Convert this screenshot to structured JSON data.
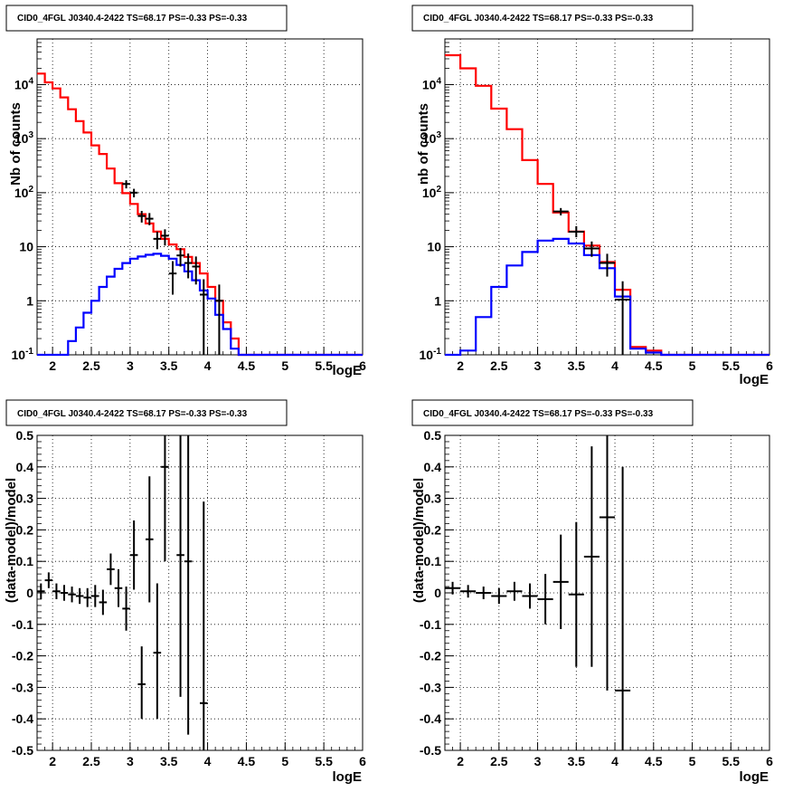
{
  "chart_data": [
    {
      "type": "step",
      "title": "CID0_4FGL J0340.4-2422 TS=68.17 PS=-0.33 PS=-0.33",
      "xlabel": "logE",
      "ylabel": "Nb of counts",
      "xlim": [
        1.8,
        6.0
      ],
      "ylim": [
        0.1,
        70000
      ],
      "yscale": "log",
      "grid": true,
      "x_ticks": [
        "2",
        "2.5",
        "3",
        "3.5",
        "4",
        "4.5",
        "5",
        "5.5",
        "6"
      ],
      "y_ticks": [
        "10^-1",
        "1",
        "10",
        "10^2",
        "10^3",
        "10^4"
      ],
      "series": [
        {
          "color": "#ff0000",
          "bins": [
            1.8,
            1.9,
            2.0,
            2.1,
            2.2,
            2.3,
            2.4,
            2.5,
            2.6,
            2.7,
            2.8,
            2.9,
            3.0,
            3.1,
            3.2,
            3.3,
            3.4,
            3.5,
            3.6,
            3.7,
            3.8,
            3.9,
            4.0,
            4.1,
            4.2,
            4.3,
            4.4,
            4.5,
            4.6,
            4.7,
            4.8,
            4.9,
            5.0,
            5.1,
            5.2,
            5.3,
            5.4,
            5.5,
            5.6,
            5.7,
            5.8,
            5.9,
            6.0
          ],
          "values": [
            16000,
            11000,
            8500,
            5800,
            3500,
            2100,
            1300,
            750,
            520,
            280,
            150,
            98,
            62,
            40,
            27,
            19,
            14,
            11,
            9,
            6.5,
            5,
            3.2,
            1.8,
            1.0,
            0.4,
            0.2,
            0.1,
            0.1,
            0.1,
            0.1,
            0.1,
            0.1,
            0.1,
            0.1,
            0.1,
            0.1,
            0.1,
            0.1,
            0.1,
            0.1,
            0.1,
            0.1
          ]
        },
        {
          "color": "#0000ff",
          "bins": [
            1.8,
            1.9,
            2.0,
            2.1,
            2.2,
            2.3,
            2.4,
            2.5,
            2.6,
            2.7,
            2.8,
            2.9,
            3.0,
            3.1,
            3.2,
            3.3,
            3.4,
            3.5,
            3.6,
            3.7,
            3.8,
            3.9,
            4.0,
            4.1,
            4.2,
            4.3,
            4.4,
            4.5,
            4.6,
            4.7,
            4.8,
            4.9,
            5.0,
            5.1,
            5.2,
            5.3,
            5.4,
            5.5,
            5.6,
            5.7,
            5.8,
            5.9,
            6.0
          ],
          "values": [
            0.02,
            0.04,
            0.06,
            0.1,
            0.18,
            0.32,
            0.6,
            1.0,
            1.8,
            2.8,
            3.9,
            5.0,
            6.0,
            6.6,
            7.1,
            7.4,
            6.8,
            6.0,
            4.6,
            3.5,
            2.4,
            1.55,
            1.1,
            0.55,
            0.3,
            0.13,
            0.1,
            0.1,
            0.1,
            0.1,
            0.1,
            0.1,
            0.1,
            0.1,
            0.1,
            0.1,
            0.1,
            0.1,
            0.1,
            0.1,
            0.1,
            0.1
          ]
        }
      ],
      "points": [
        {
          "x": 2.95,
          "y": 145,
          "xerr": 0.05,
          "lo": 120,
          "hi": 170
        },
        {
          "x": 3.05,
          "y": 100,
          "xerr": 0.05,
          "lo": 82,
          "hi": 118
        },
        {
          "x": 3.15,
          "y": 37,
          "xerr": 0.05,
          "lo": 28,
          "hi": 46
        },
        {
          "x": 3.25,
          "y": 33,
          "xerr": 0.05,
          "lo": 25,
          "hi": 42
        },
        {
          "x": 3.35,
          "y": 14,
          "xerr": 0.05,
          "lo": 9,
          "hi": 19
        },
        {
          "x": 3.45,
          "y": 16,
          "xerr": 0.05,
          "lo": 10.5,
          "hi": 21
        },
        {
          "x": 3.55,
          "y": 3.2,
          "xerr": 0.05,
          "lo": 1.3,
          "hi": 5.4
        },
        {
          "x": 3.65,
          "y": 6.9,
          "xerr": 0.05,
          "lo": 4.3,
          "hi": 9.5
        },
        {
          "x": 3.75,
          "y": 5.0,
          "xerr": 0.05,
          "lo": 2.6,
          "hi": 7.5
        },
        {
          "x": 3.85,
          "y": 4.3,
          "xerr": 0.05,
          "lo": 2.0,
          "hi": 6.6
        },
        {
          "x": 3.95,
          "y": 1.3,
          "xerr": 0.05,
          "lo": 0.1,
          "hi": 2.5
        },
        {
          "x": 4.15,
          "y": 1.0,
          "xerr": 0.05,
          "lo": 0.1,
          "hi": 2.0
        }
      ]
    },
    {
      "type": "step",
      "title": "CID0_4FGL J0340.4-2422 TS=68.17 PS=-0.33 PS=-0.33",
      "xlabel": "logE",
      "ylabel": "nb of counts",
      "xlim": [
        1.8,
        6.0
      ],
      "ylim": [
        0.1,
        70000
      ],
      "yscale": "log",
      "grid": true,
      "x_ticks": [
        "2",
        "2.5",
        "3",
        "3.5",
        "4",
        "4.5",
        "5",
        "5.5",
        "6"
      ],
      "y_ticks": [
        "10^-1",
        "1",
        "10",
        "10^2",
        "10^3",
        "10^4"
      ],
      "series": [
        {
          "color": "#ff0000",
          "bins": [
            1.8,
            2.0,
            2.2,
            2.4,
            2.6,
            2.8,
            3.0,
            3.2,
            3.4,
            3.6,
            3.8,
            4.0,
            4.2,
            4.4,
            4.6,
            4.8,
            5.0,
            5.2,
            5.4,
            5.6,
            5.8,
            6.0
          ],
          "values": [
            35000,
            20000,
            9500,
            3600,
            1500,
            400,
            145,
            43,
            19,
            10.5,
            5.2,
            1.6,
            0.14,
            0.12,
            0.1,
            0.1,
            0.1,
            0.1,
            0.1,
            0.1,
            0.1
          ]
        },
        {
          "color": "#0000ff",
          "bins": [
            1.8,
            2.0,
            2.2,
            2.4,
            2.6,
            2.8,
            3.0,
            3.2,
            3.4,
            3.6,
            3.8,
            4.0,
            4.2,
            4.4,
            4.6,
            4.8,
            5.0,
            5.2,
            5.4,
            5.6,
            5.8,
            6.0
          ],
          "values": [
            0.1,
            0.12,
            0.5,
            1.8,
            4.5,
            8.0,
            13.0,
            14.0,
            11.5,
            7.0,
            4.0,
            1.2,
            0.13,
            0.11,
            0.1,
            0.1,
            0.1,
            0.1,
            0.1,
            0.1,
            0.1
          ]
        }
      ],
      "points": [
        {
          "x": 3.3,
          "y": 45,
          "xerr": 0.1,
          "lo": 38,
          "hi": 52
        },
        {
          "x": 3.5,
          "y": 19,
          "xerr": 0.1,
          "lo": 15,
          "hi": 24
        },
        {
          "x": 3.7,
          "y": 9.3,
          "xerr": 0.1,
          "lo": 6.5,
          "hi": 12.5
        },
        {
          "x": 3.9,
          "y": 5.0,
          "xerr": 0.1,
          "lo": 2.8,
          "hi": 7.4
        },
        {
          "x": 4.1,
          "y": 1.05,
          "xerr": 0.1,
          "lo": 0.1,
          "hi": 2.3
        }
      ]
    },
    {
      "type": "errorbar",
      "title": "CID0_4FGL J0340.4-2422 TS=68.17 PS=-0.33 PS=-0.33",
      "xlabel": "logE",
      "ylabel": "(data-model)/model",
      "xlim": [
        1.8,
        6.0
      ],
      "ylim": [
        -0.5,
        0.5
      ],
      "grid": true,
      "x_ticks": [
        "2",
        "2.5",
        "3",
        "3.5",
        "4",
        "4.5",
        "5",
        "5.5",
        "6"
      ],
      "y_ticks": [
        "-0.5",
        "-0.4",
        "-0.3",
        "-0.2",
        "-0.1",
        "0",
        "0.1",
        "0.2",
        "0.3",
        "0.4",
        "0.5"
      ],
      "points": [
        {
          "x": 1.85,
          "y": 0.005,
          "xerr": 0.05,
          "lo": -0.02,
          "hi": 0.03
        },
        {
          "x": 1.95,
          "y": 0.04,
          "xerr": 0.05,
          "lo": 0.015,
          "hi": 0.065
        },
        {
          "x": 2.05,
          "y": 0.005,
          "xerr": 0.05,
          "lo": -0.02,
          "hi": 0.03
        },
        {
          "x": 2.15,
          "y": 0.0,
          "xerr": 0.05,
          "lo": -0.025,
          "hi": 0.025
        },
        {
          "x": 2.25,
          "y": -0.005,
          "xerr": 0.05,
          "lo": -0.03,
          "hi": 0.02
        },
        {
          "x": 2.35,
          "y": -0.01,
          "xerr": 0.05,
          "lo": -0.035,
          "hi": 0.015
        },
        {
          "x": 2.45,
          "y": -0.015,
          "xerr": 0.05,
          "lo": -0.045,
          "hi": 0.015
        },
        {
          "x": 2.55,
          "y": -0.01,
          "xerr": 0.05,
          "lo": -0.045,
          "hi": 0.025
        },
        {
          "x": 2.65,
          "y": -0.03,
          "xerr": 0.05,
          "lo": -0.07,
          "hi": 0.01
        },
        {
          "x": 2.75,
          "y": 0.075,
          "xerr": 0.05,
          "lo": 0.025,
          "hi": 0.125
        },
        {
          "x": 2.85,
          "y": 0.015,
          "xerr": 0.05,
          "lo": -0.045,
          "hi": 0.075
        },
        {
          "x": 2.95,
          "y": -0.05,
          "xerr": 0.05,
          "lo": -0.12,
          "hi": 0.02
        },
        {
          "x": 3.05,
          "y": 0.12,
          "xerr": 0.05,
          "lo": 0.01,
          "hi": 0.23
        },
        {
          "x": 3.15,
          "y": -0.29,
          "xerr": 0.05,
          "lo": -0.4,
          "hi": -0.17
        },
        {
          "x": 3.25,
          "y": 0.17,
          "xerr": 0.05,
          "lo": -0.03,
          "hi": 0.37
        },
        {
          "x": 3.35,
          "y": -0.19,
          "xerr": 0.05,
          "lo": -0.4,
          "hi": 0.03
        },
        {
          "x": 3.45,
          "y": 0.4,
          "xerr": 0.05,
          "lo": 0.1,
          "hi": 0.5
        },
        {
          "x": 3.65,
          "y": 0.12,
          "xerr": 0.05,
          "lo": -0.33,
          "hi": 0.5
        },
        {
          "x": 3.75,
          "y": 0.1,
          "xerr": 0.05,
          "lo": -0.45,
          "hi": 0.5
        },
        {
          "x": 3.95,
          "y": -0.35,
          "xerr": 0.05,
          "lo": -0.5,
          "hi": 0.29
        }
      ]
    },
    {
      "type": "errorbar",
      "title": "CID0_4FGL J0340.4-2422 TS=68.17 PS=-0.33 PS=-0.33",
      "xlabel": "logE",
      "ylabel": "(data-model)/model",
      "xlim": [
        1.8,
        6.0
      ],
      "ylim": [
        -0.5,
        0.5
      ],
      "grid": true,
      "x_ticks": [
        "2",
        "2.5",
        "3",
        "3.5",
        "4",
        "4.5",
        "5",
        "5.5",
        "6"
      ],
      "y_ticks": [
        "-0.5",
        "-0.4",
        "-0.3",
        "-0.2",
        "-0.1",
        "0",
        "0.1",
        "0.2",
        "0.3",
        "0.4",
        "0.5"
      ],
      "points": [
        {
          "x": 1.9,
          "y": 0.015,
          "xerr": 0.1,
          "lo": -0.005,
          "hi": 0.035
        },
        {
          "x": 2.1,
          "y": 0.005,
          "xerr": 0.1,
          "lo": -0.015,
          "hi": 0.025
        },
        {
          "x": 2.3,
          "y": 0.0,
          "xerr": 0.1,
          "lo": -0.02,
          "hi": 0.02
        },
        {
          "x": 2.5,
          "y": -0.01,
          "xerr": 0.1,
          "lo": -0.035,
          "hi": 0.015
        },
        {
          "x": 2.7,
          "y": 0.005,
          "xerr": 0.1,
          "lo": -0.025,
          "hi": 0.035
        },
        {
          "x": 2.9,
          "y": -0.01,
          "xerr": 0.1,
          "lo": -0.05,
          "hi": 0.03
        },
        {
          "x": 3.1,
          "y": -0.02,
          "xerr": 0.1,
          "lo": -0.1,
          "hi": 0.06
        },
        {
          "x": 3.3,
          "y": 0.035,
          "xerr": 0.1,
          "lo": -0.115,
          "hi": 0.185
        },
        {
          "x": 3.5,
          "y": -0.005,
          "xerr": 0.1,
          "lo": -0.235,
          "hi": 0.225
        },
        {
          "x": 3.7,
          "y": 0.115,
          "xerr": 0.1,
          "lo": -0.235,
          "hi": 0.465
        },
        {
          "x": 3.9,
          "y": 0.24,
          "xerr": 0.1,
          "lo": -0.31,
          "hi": 0.5
        },
        {
          "x": 4.1,
          "y": -0.31,
          "xerr": 0.1,
          "lo": -0.5,
          "hi": 0.4
        }
      ]
    }
  ]
}
